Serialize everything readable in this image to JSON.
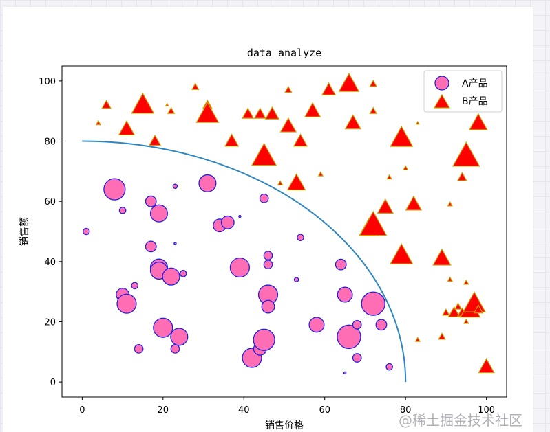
{
  "chart_data": {
    "type": "scatter",
    "title": "data analyze",
    "xlabel": "销售价格",
    "ylabel": "销售额",
    "xlim": [
      -5,
      105
    ],
    "ylim": [
      -5,
      105
    ],
    "xticks": [
      0,
      20,
      40,
      60,
      80,
      100
    ],
    "yticks": [
      0,
      20,
      40,
      60,
      80,
      100
    ],
    "legend_position": "top-right",
    "grid": false,
    "curve": {
      "type": "line",
      "center": [
        0,
        0
      ],
      "radius": 80,
      "color": "#2e86c1"
    },
    "series": [
      {
        "name": "A产品",
        "marker": "circle",
        "face_color": "#ff6eb4",
        "edge_color": "#1f1fe0",
        "points": [
          [
            1,
            50,
            3
          ],
          [
            8,
            64,
            10
          ],
          [
            10,
            57,
            3
          ],
          [
            10,
            29,
            6
          ],
          [
            11,
            26,
            9
          ],
          [
            13,
            32,
            3
          ],
          [
            14,
            11,
            4
          ],
          [
            17,
            60,
            5
          ],
          [
            17,
            45,
            5
          ],
          [
            19,
            56,
            8
          ],
          [
            19,
            38,
            8
          ],
          [
            19,
            37,
            8
          ],
          [
            20,
            18,
            9
          ],
          [
            22,
            35,
            8
          ],
          [
            23,
            65,
            2
          ],
          [
            23,
            46,
            1
          ],
          [
            23,
            11,
            4
          ],
          [
            24,
            15,
            8
          ],
          [
            25,
            36,
            3
          ],
          [
            31,
            66,
            8
          ],
          [
            34,
            52,
            6
          ],
          [
            36,
            53,
            6
          ],
          [
            39,
            55,
            1
          ],
          [
            39,
            38,
            9
          ],
          [
            42,
            8,
            9
          ],
          [
            44,
            11,
            6
          ],
          [
            45,
            14,
            10
          ],
          [
            45,
            61,
            4
          ],
          [
            46,
            42,
            4
          ],
          [
            46,
            39,
            4
          ],
          [
            46,
            29,
            9
          ],
          [
            46,
            25,
            6
          ],
          [
            53,
            34,
            2
          ],
          [
            54,
            48,
            3
          ],
          [
            58,
            19,
            7
          ],
          [
            64,
            39,
            5
          ],
          [
            65,
            29,
            7
          ],
          [
            65,
            3,
            1
          ],
          [
            66,
            15,
            11
          ],
          [
            68,
            8,
            4
          ],
          [
            68,
            19,
            4
          ],
          [
            72,
            26,
            11
          ],
          [
            74,
            19,
            5
          ],
          [
            76,
            5,
            3
          ]
        ]
      },
      {
        "name": "B产品",
        "marker": "triangle",
        "face_color": "#ff0000",
        "edge_color": "#c8a000",
        "points": [
          [
            4,
            86,
            2
          ],
          [
            6,
            92,
            4
          ],
          [
            11,
            84,
            7
          ],
          [
            15,
            92,
            10
          ],
          [
            18,
            80,
            5
          ],
          [
            21,
            92,
            1
          ],
          [
            22,
            90,
            3
          ],
          [
            28,
            98,
            3
          ],
          [
            31,
            92,
            4
          ],
          [
            31,
            89,
            10
          ],
          [
            37,
            80,
            6
          ],
          [
            41,
            89,
            5
          ],
          [
            44,
            89,
            5
          ],
          [
            45,
            75,
            11
          ],
          [
            47,
            89,
            6
          ],
          [
            49,
            66,
            2
          ],
          [
            51,
            85,
            7
          ],
          [
            51,
            97,
            3
          ],
          [
            53,
            66,
            8
          ],
          [
            54,
            80,
            6
          ],
          [
            57,
            90,
            7
          ],
          [
            59,
            69,
            2
          ],
          [
            61,
            97,
            6
          ],
          [
            66,
            99,
            9
          ],
          [
            67,
            86,
            7
          ],
          [
            71,
            51,
            9
          ],
          [
            72,
            52,
            12
          ],
          [
            72,
            99,
            3
          ],
          [
            72,
            90,
            3
          ],
          [
            75,
            58,
            7
          ],
          [
            76,
            68,
            2
          ],
          [
            79,
            81,
            10
          ],
          [
            79,
            42,
            10
          ],
          [
            80,
            71,
            2
          ],
          [
            82,
            59,
            7
          ],
          [
            83,
            86,
            1
          ],
          [
            83,
            14,
            2
          ],
          [
            89,
            41,
            8
          ],
          [
            89,
            15,
            3
          ],
          [
            90,
            23,
            3
          ],
          [
            91,
            34,
            2
          ],
          [
            91,
            59,
            2
          ],
          [
            92,
            23,
            5
          ],
          [
            93,
            25,
            3
          ],
          [
            94,
            68,
            4
          ],
          [
            94,
            23,
            4
          ],
          [
            95,
            33,
            2
          ],
          [
            95,
            20,
            2
          ],
          [
            95,
            75,
            12
          ],
          [
            96,
            24,
            9
          ],
          [
            97,
            26,
            10
          ],
          [
            98,
            24,
            4
          ],
          [
            98,
            86,
            8
          ],
          [
            100,
            5,
            7
          ]
        ]
      }
    ]
  },
  "watermark": "@稀土掘金技术社区"
}
